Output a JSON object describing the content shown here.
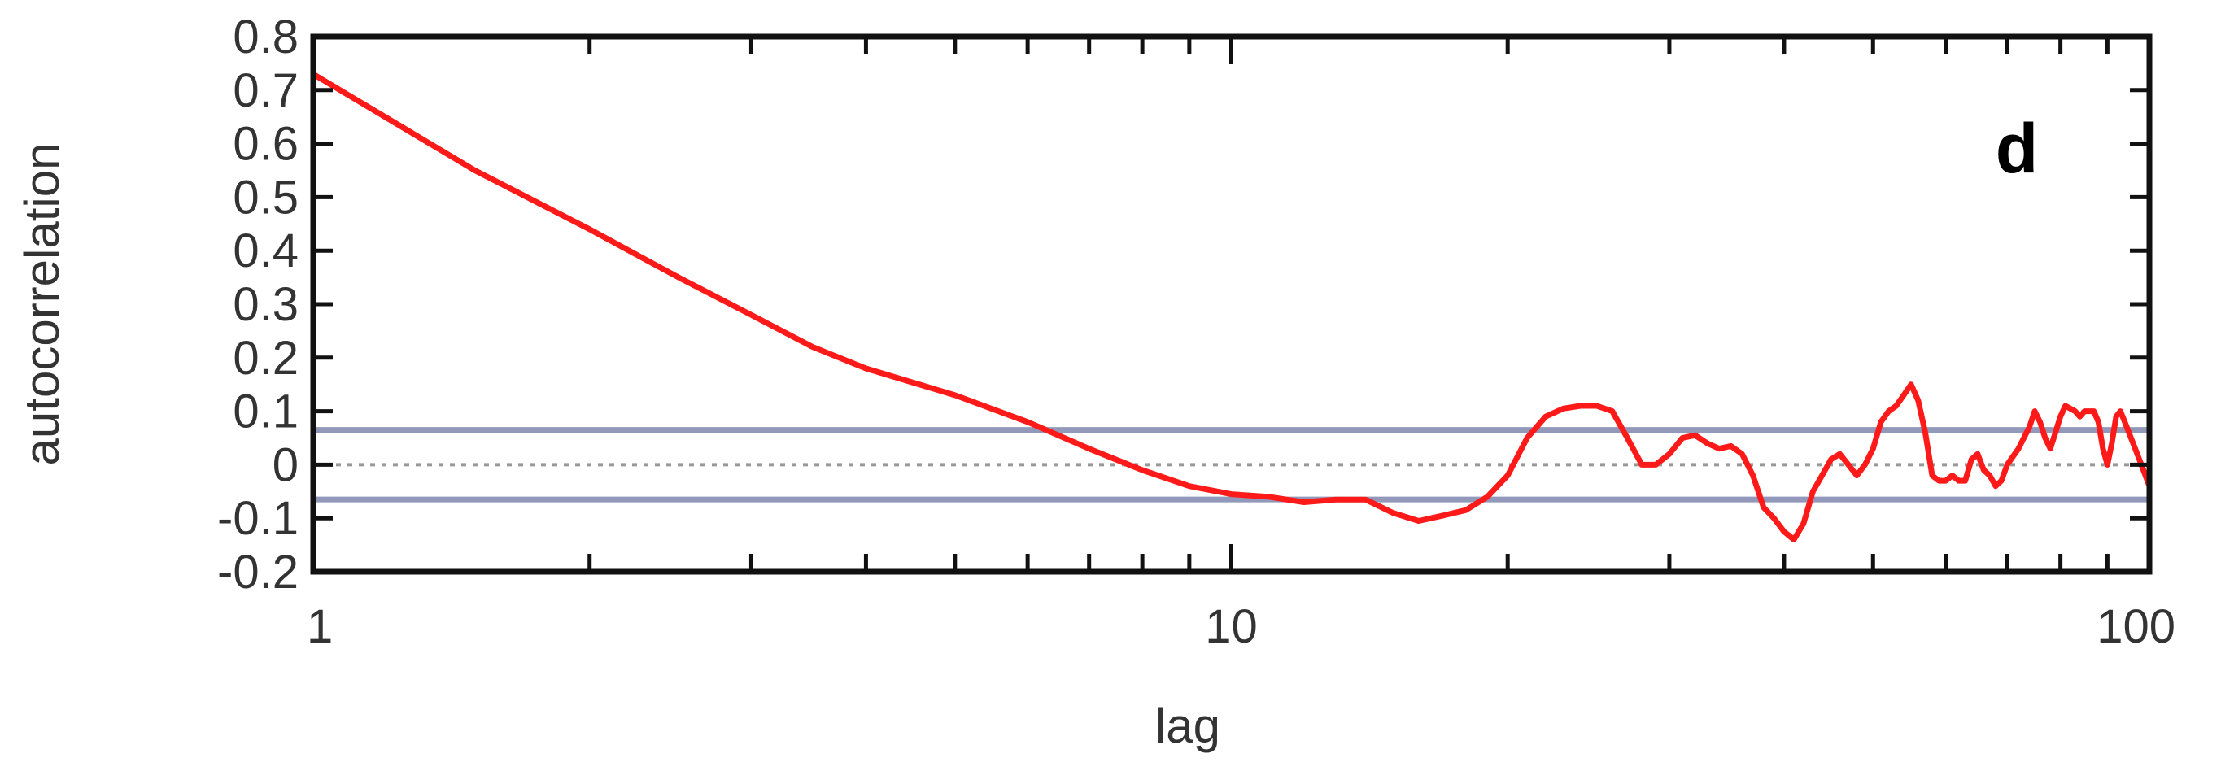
{
  "chart_data": {
    "type": "line",
    "title": "",
    "panel_label": "d",
    "xlabel": "lag",
    "ylabel": "autocorrelation",
    "x_scale": "log",
    "xlim": [
      1,
      100
    ],
    "ylim": [
      -0.2,
      0.8
    ],
    "x_ticks": [
      {
        "value": 1,
        "label": "1"
      },
      {
        "value": 10,
        "label": "10"
      },
      {
        "value": 100,
        "label": "100"
      }
    ],
    "y_ticks": [
      {
        "value": 0.8,
        "label": "0.8"
      },
      {
        "value": 0.7,
        "label": "0.7"
      },
      {
        "value": 0.6,
        "label": "0.6"
      },
      {
        "value": 0.5,
        "label": "0.5"
      },
      {
        "value": 0.4,
        "label": "0.4"
      },
      {
        "value": 0.3,
        "label": "0.3"
      },
      {
        "value": 0.2,
        "label": "0.2"
      },
      {
        "value": 0.1,
        "label": "0.1"
      },
      {
        "value": 0,
        "label": "0"
      },
      {
        "value": -0.1,
        "label": "-0.1"
      },
      {
        "value": -0.2,
        "label": "-0.2"
      }
    ],
    "grid": false,
    "zero_line": {
      "y": 0,
      "style": "dotted",
      "color": "#999999"
    },
    "confidence_bands": {
      "values": [
        0.065,
        -0.065
      ],
      "color": "#7f86ad"
    },
    "series": [
      {
        "color": "#ff1a1a",
        "points": [
          [
            1,
            0.73
          ],
          [
            1.5,
            0.55
          ],
          [
            2,
            0.44
          ],
          [
            2.5,
            0.35
          ],
          [
            3,
            0.28
          ],
          [
            3.5,
            0.22
          ],
          [
            4,
            0.18
          ],
          [
            5,
            0.13
          ],
          [
            6,
            0.08
          ],
          [
            7,
            0.03
          ],
          [
            8,
            -0.01
          ],
          [
            9,
            -0.04
          ],
          [
            10,
            -0.055
          ],
          [
            11,
            -0.06
          ],
          [
            12,
            -0.07
          ],
          [
            13,
            -0.065
          ],
          [
            14,
            -0.065
          ],
          [
            15,
            -0.09
          ],
          [
            16,
            -0.105
          ],
          [
            17,
            -0.095
          ],
          [
            18,
            -0.085
          ],
          [
            19,
            -0.06
          ],
          [
            20,
            -0.02
          ],
          [
            21,
            0.05
          ],
          [
            22,
            0.09
          ],
          [
            23,
            0.105
          ],
          [
            24,
            0.11
          ],
          [
            25,
            0.11
          ],
          [
            26,
            0.1
          ],
          [
            27,
            0.05
          ],
          [
            28,
            0.0
          ],
          [
            29,
            0.0
          ],
          [
            30,
            0.02
          ],
          [
            31,
            0.05
          ],
          [
            32,
            0.055
          ],
          [
            33,
            0.04
          ],
          [
            34,
            0.03
          ],
          [
            35,
            0.035
          ],
          [
            36,
            0.02
          ],
          [
            37,
            -0.02
          ],
          [
            38,
            -0.08
          ],
          [
            39,
            -0.1
          ],
          [
            40,
            -0.125
          ],
          [
            41,
            -0.14
          ],
          [
            42,
            -0.11
          ],
          [
            43,
            -0.05
          ],
          [
            44,
            -0.02
          ],
          [
            45,
            0.01
          ],
          [
            46,
            0.02
          ],
          [
            47,
            0.0
          ],
          [
            48,
            -0.02
          ],
          [
            49,
            0.0
          ],
          [
            50,
            0.03
          ],
          [
            51,
            0.08
          ],
          [
            52,
            0.1
          ],
          [
            53,
            0.11
          ],
          [
            54,
            0.13
          ],
          [
            55,
            0.15
          ],
          [
            56,
            0.12
          ],
          [
            57,
            0.06
          ],
          [
            58,
            -0.02
          ],
          [
            59,
            -0.03
          ],
          [
            60,
            -0.03
          ],
          [
            61,
            -0.02
          ],
          [
            62,
            -0.03
          ],
          [
            63,
            -0.03
          ],
          [
            64,
            0.01
          ],
          [
            65,
            0.02
          ],
          [
            66,
            -0.01
          ],
          [
            67,
            -0.02
          ],
          [
            68,
            -0.04
          ],
          [
            69,
            -0.03
          ],
          [
            70,
            0.0
          ],
          [
            72,
            0.03
          ],
          [
            74,
            0.07
          ],
          [
            75,
            0.1
          ],
          [
            76,
            0.08
          ],
          [
            77,
            0.05
          ],
          [
            78,
            0.03
          ],
          [
            79,
            0.06
          ],
          [
            80,
            0.09
          ],
          [
            81,
            0.11
          ],
          [
            83,
            0.1
          ],
          [
            84,
            0.09
          ],
          [
            85,
            0.1
          ],
          [
            87,
            0.1
          ],
          [
            88,
            0.08
          ],
          [
            89,
            0.03
          ],
          [
            90,
            0.0
          ],
          [
            91,
            0.04
          ],
          [
            92,
            0.09
          ],
          [
            93,
            0.1
          ],
          [
            94,
            0.08
          ],
          [
            96,
            0.04
          ],
          [
            98,
            0.0
          ],
          [
            100,
            -0.04
          ]
        ]
      }
    ]
  }
}
